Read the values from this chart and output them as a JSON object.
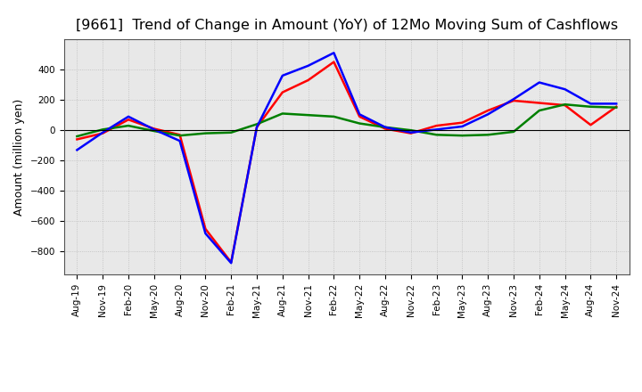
{
  "title": "[9661]  Trend of Change in Amount (YoY) of 12Mo Moving Sum of Cashflows",
  "ylabel": "Amount (million yen)",
  "background_color": "#ffffff",
  "grid_color": "#bbbbbb",
  "x_labels": [
    "Aug-19",
    "Nov-19",
    "Feb-20",
    "May-20",
    "Aug-20",
    "Nov-20",
    "Feb-21",
    "May-21",
    "Aug-21",
    "Nov-21",
    "Feb-22",
    "May-22",
    "Aug-22",
    "Nov-22",
    "Feb-23",
    "May-23",
    "Aug-23",
    "Nov-23",
    "Feb-24",
    "May-24",
    "Aug-24",
    "Nov-24"
  ],
  "operating_cashflow": [
    -60,
    -20,
    70,
    10,
    -30,
    -650,
    -870,
    20,
    250,
    330,
    450,
    90,
    10,
    -20,
    30,
    50,
    130,
    195,
    180,
    165,
    35,
    155
  ],
  "investing_cashflow": [
    -40,
    5,
    30,
    -5,
    -35,
    -20,
    -15,
    40,
    110,
    100,
    90,
    45,
    20,
    0,
    -30,
    -35,
    -30,
    -10,
    130,
    170,
    155,
    150
  ],
  "free_cashflow": [
    -130,
    -15,
    90,
    5,
    -70,
    -680,
    -875,
    20,
    360,
    425,
    510,
    105,
    20,
    -15,
    5,
    25,
    105,
    205,
    315,
    270,
    175,
    175
  ],
  "operating_color": "#ff0000",
  "investing_color": "#008000",
  "free_color": "#0000ff",
  "ylim_min": -950,
  "ylim_max": 600,
  "yticks": [
    -800,
    -600,
    -400,
    -200,
    0,
    200,
    400
  ],
  "line_width": 1.8,
  "title_fontsize": 11.5,
  "axis_label_fontsize": 9,
  "tick_fontsize": 7.5,
  "legend_fontsize": 9.5
}
